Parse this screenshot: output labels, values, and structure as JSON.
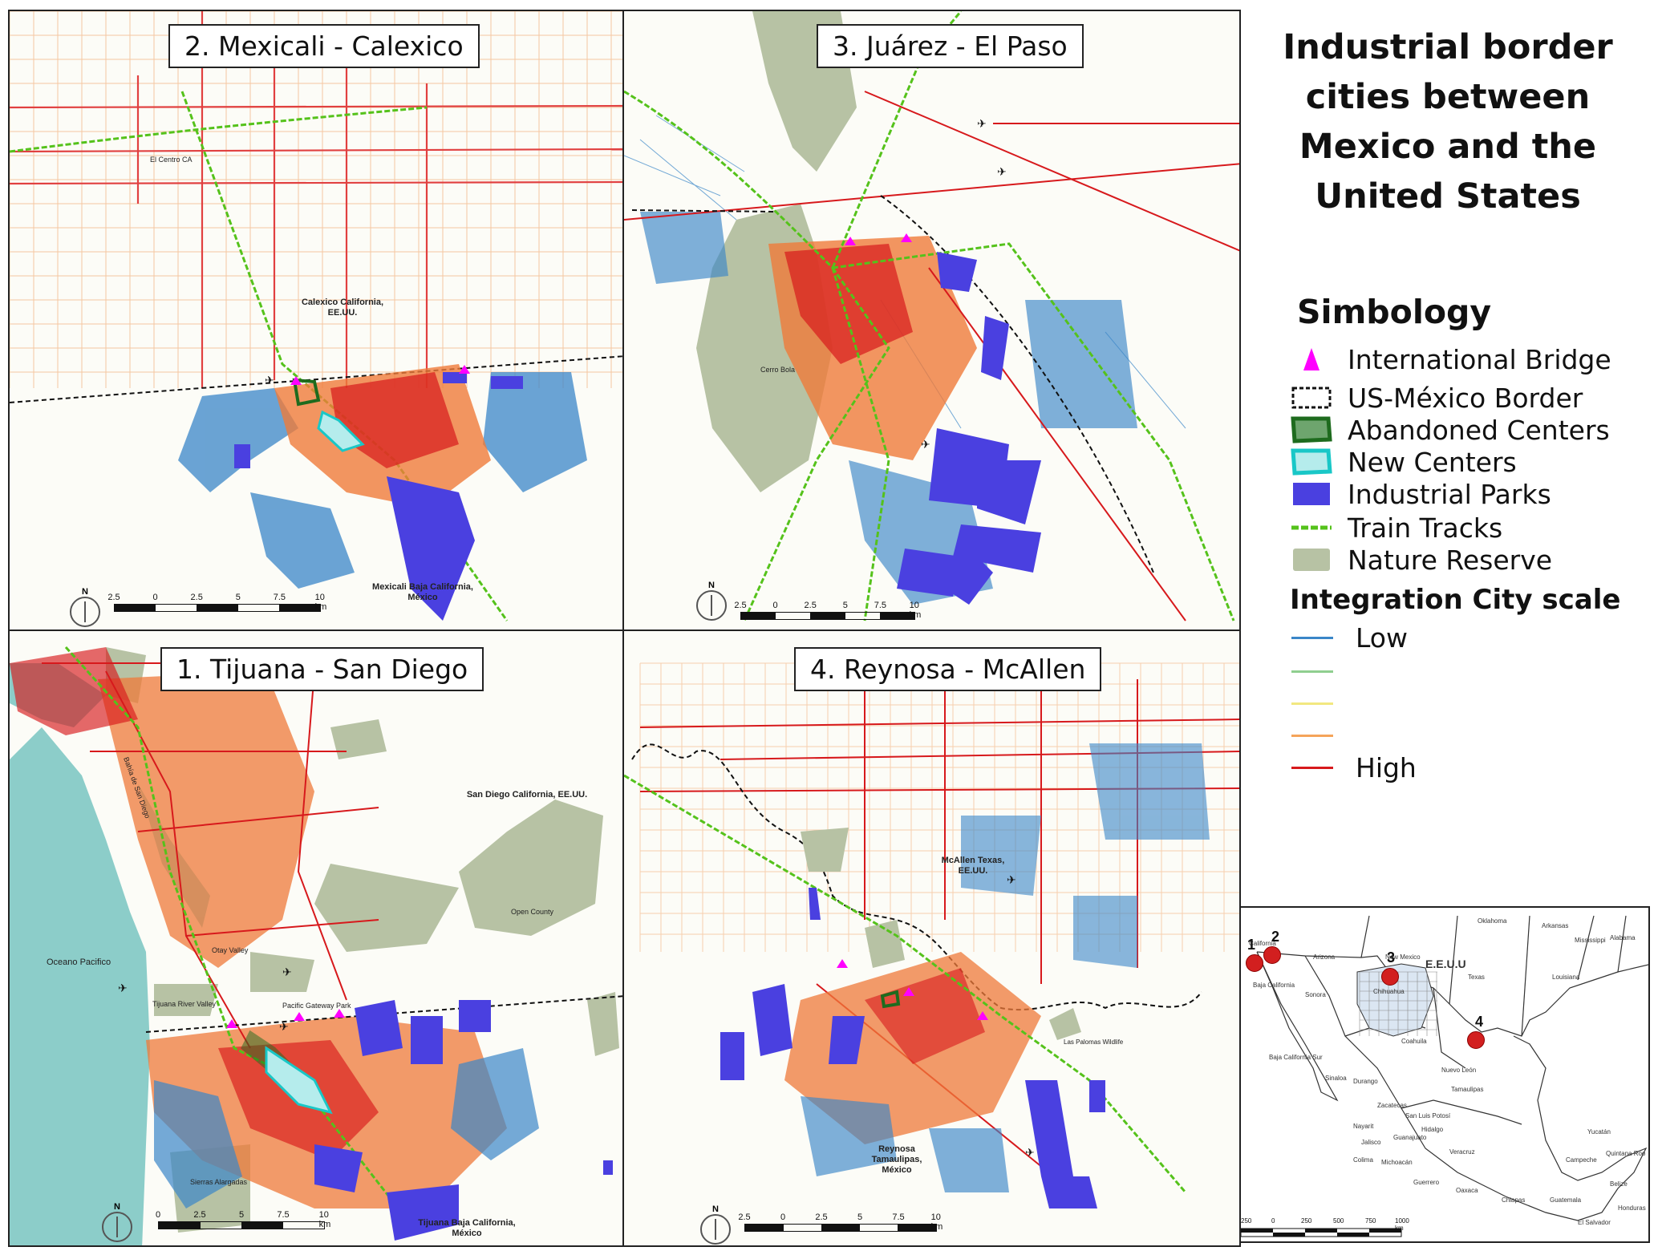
{
  "title": "Industrial border cities between Mexico and the United States",
  "title_lines": [
    "Industrial border",
    "cities between",
    "Mexico and the",
    "United States"
  ],
  "colors": {
    "integration_low": "#3a86c8",
    "integration_mid_low": "#8fcf8f",
    "integration_mid": "#fff3a0",
    "integration_mid_high": "#f5a45a",
    "integration_high": "#d7191c",
    "international_bridge": "#ff00ff",
    "abandoned_centers": "#1e6b1e",
    "new_centers": "#19c7c7",
    "industrial_parks": "#4a40e0",
    "train_tracks": "#55c21b",
    "nature_reserve": "#b7c2a4",
    "ocean": "#8ccdc9"
  },
  "legend": {
    "simbology_title": "Simbology",
    "items": [
      {
        "label": "International Bridge",
        "icon": "magenta-triangle-icon"
      },
      {
        "label": "US-México Border",
        "icon": "dashed-box-icon"
      },
      {
        "label": "Abandoned Centers",
        "icon": "green-outline-icon"
      },
      {
        "label": "New Centers",
        "icon": "cyan-outline-icon"
      },
      {
        "label": "Industrial Parks",
        "icon": "blue-fill-icon"
      },
      {
        "label": "Train Tracks",
        "icon": "green-dashed-line-icon"
      },
      {
        "label": "Nature Reserve",
        "icon": "gray-green-fill-icon"
      }
    ],
    "scale_title": "Integration City scale",
    "scale_low": "Low",
    "scale_high": "High"
  },
  "panels": [
    {
      "id": "mexicali",
      "title": "2. Mexicali - Calexico",
      "labels": {
        "el_centro": "El Centro CA",
        "calexico": "Calexico California, EE.UU.",
        "mexicali": "Mexicali Baja California, México"
      },
      "scale": [
        "2.5",
        "0",
        "2.5",
        "5",
        "7.5",
        "10 km"
      ]
    },
    {
      "id": "juarez",
      "title": "3. Juárez - El Paso",
      "labels": {
        "cerro_bola": "Cerro Bola"
      },
      "scale": [
        "2.5",
        "0",
        "2.5",
        "5",
        "7.5",
        "10 km"
      ]
    },
    {
      "id": "tijuana",
      "title": "1. Tijuana - San Diego",
      "labels": {
        "san_diego": "San Diego California, EE.UU.",
        "oceano": "Oceano Pacifico",
        "open_county": "Open County",
        "tijuana_river": "Tijuana River Valley",
        "pacific_gateway": "Pacific Gateway Park",
        "otay": "Otay Valley",
        "sierras": "Sierras Alargadas",
        "bahia": "Bahía de San Diego",
        "tijuana": "Tijuana Baja California, México"
      },
      "scale": [
        "0",
        "2.5",
        "5",
        "7.5",
        "10 km"
      ]
    },
    {
      "id": "reynosa",
      "title": "4. Reynosa - McAllen",
      "labels": {
        "mcallen": "McAllen Texas, EE.UU.",
        "reynosa": "Reynosa Tamaulipas, México",
        "palomas": "Las Palomas Wildlife"
      },
      "scale": [
        "2.5",
        "0",
        "2.5",
        "5",
        "7.5",
        "10 km"
      ]
    }
  ],
  "north_label": "N",
  "inset": {
    "country_label": "E.E.U.U",
    "markers": [
      "1",
      "2",
      "3",
      "4"
    ],
    "states": [
      "California",
      "Arizona",
      "New Mexico",
      "Oklahoma",
      "Arkansas",
      "Mississippi",
      "Alabama",
      "Louisiana",
      "Texas",
      "Sonora",
      "Baja California",
      "Baja California Sur",
      "Coahuila",
      "Nuevo León",
      "Tamaulipas",
      "Durango",
      "Sinaloa",
      "Zacatecas",
      "San Luis Potosí",
      "Nayarit",
      "Jalisco",
      "Guanajuato",
      "Michoacán",
      "Guerrero",
      "Oaxaca",
      "Chiapas",
      "Yucatán",
      "Campeche",
      "Quintana Roo",
      "Belize",
      "Guatemala",
      "El Salvador",
      "Honduras",
      "Veracruz",
      "Hidalgo",
      "Colima",
      "Chihuahua"
    ],
    "scale": [
      "250",
      "0",
      "250",
      "500",
      "750",
      "1000 km"
    ]
  }
}
